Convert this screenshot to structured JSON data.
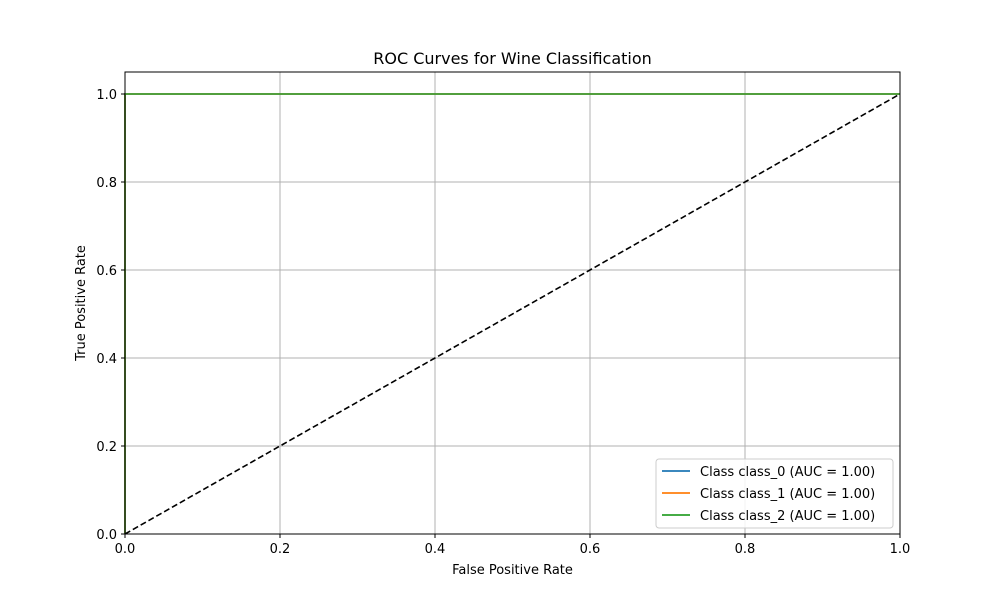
{
  "chart_data": {
    "type": "line",
    "title": "ROC Curves for Wine Classification",
    "xlabel": "False Positive Rate",
    "ylabel": "True Positive Rate",
    "xlim": [
      0.0,
      1.0
    ],
    "ylim": [
      0.0,
      1.05
    ],
    "x_ticks": [
      0.0,
      0.2,
      0.4,
      0.6,
      0.8,
      1.0
    ],
    "y_ticks": [
      0.0,
      0.2,
      0.4,
      0.6,
      0.8,
      1.0
    ],
    "x_tick_labels": [
      "0.0",
      "0.2",
      "0.4",
      "0.6",
      "0.8",
      "1.0"
    ],
    "y_tick_labels": [
      "0.0",
      "0.2",
      "0.4",
      "0.6",
      "0.8",
      "1.0"
    ],
    "grid": true,
    "legend_position": "lower-right",
    "series": [
      {
        "name": "Class class_0 (AUC = 1.00)",
        "color": "#1f77b4",
        "x": [
          0.0,
          0.0,
          1.0
        ],
        "y": [
          0.0,
          1.0,
          1.0
        ]
      },
      {
        "name": "Class class_1 (AUC = 1.00)",
        "color": "#ff7f0e",
        "x": [
          0.0,
          0.0,
          1.0
        ],
        "y": [
          0.0,
          1.0,
          1.0
        ]
      },
      {
        "name": "Class class_2 (AUC = 1.00)",
        "color": "#2ca02c",
        "x": [
          0.0,
          0.0,
          1.0
        ],
        "y": [
          0.0,
          1.0,
          1.0
        ]
      }
    ],
    "reference_line": {
      "x": [
        0.0,
        1.0
      ],
      "y": [
        0.0,
        1.0
      ],
      "color": "#000000",
      "style": "dashed"
    }
  }
}
